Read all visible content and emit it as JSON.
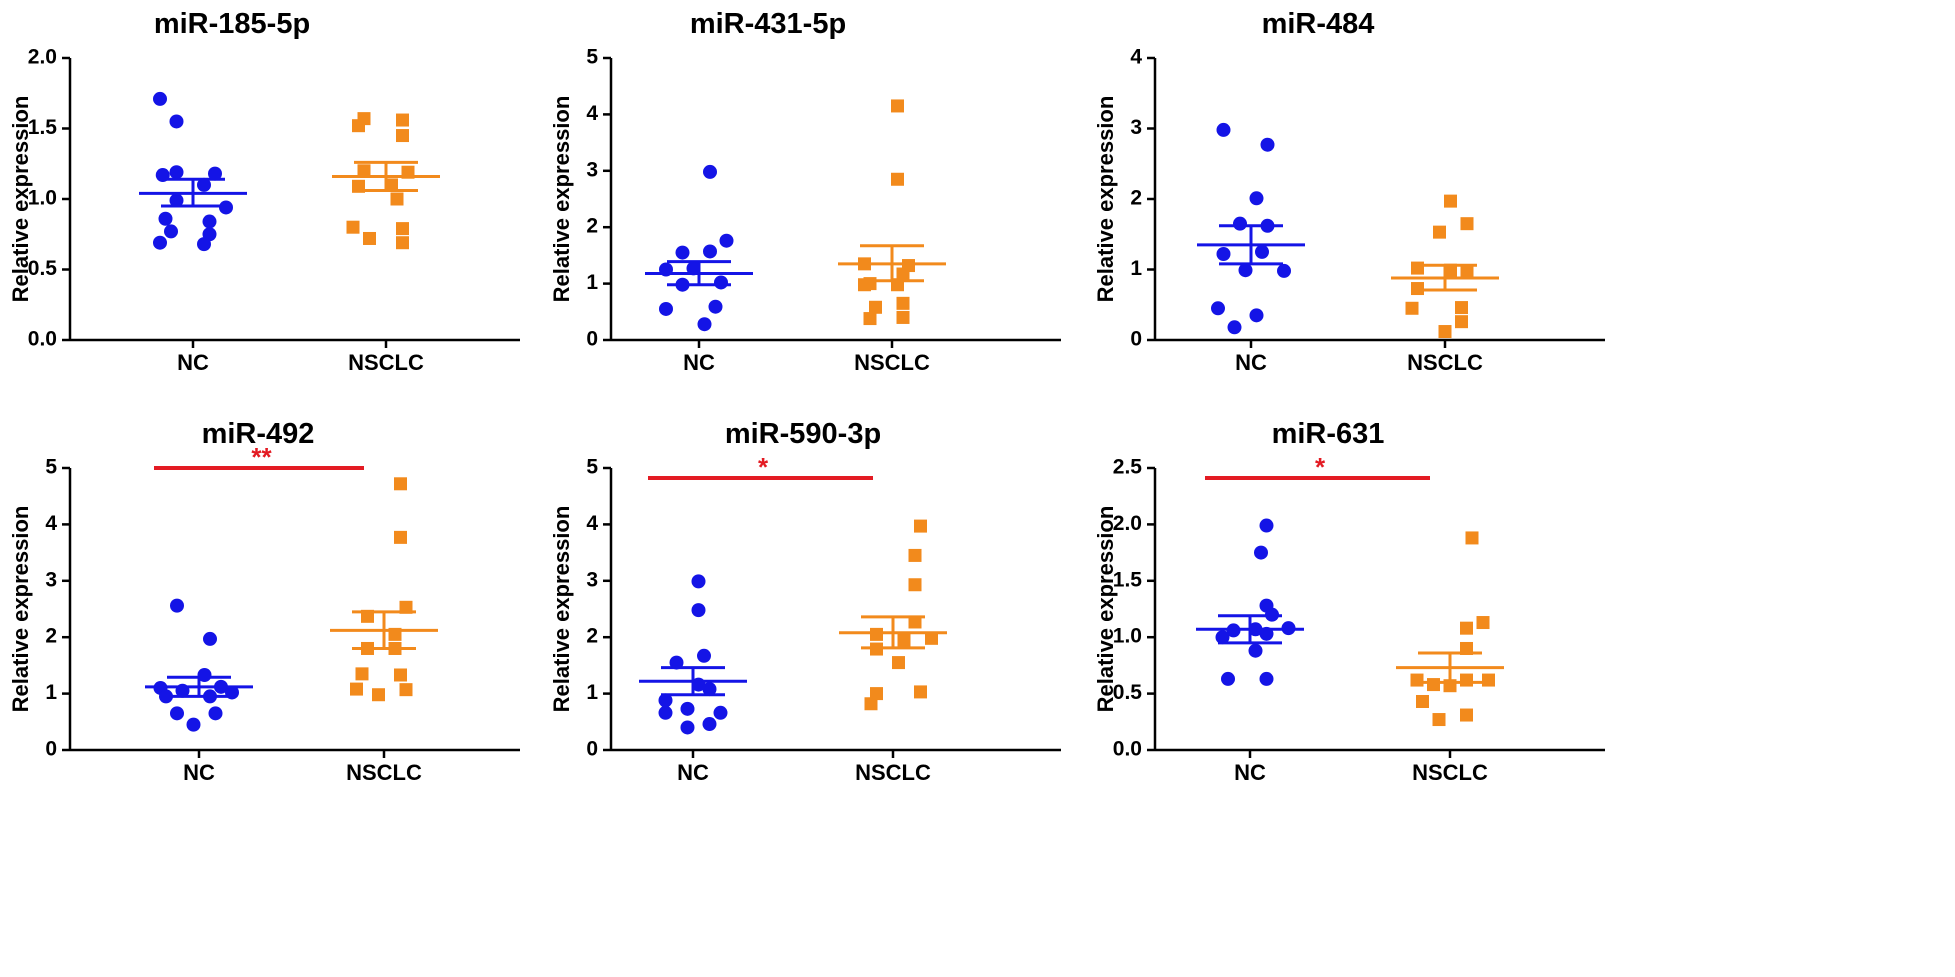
{
  "colors": {
    "nc": "#1414e6",
    "nsclc": "#f28a1c",
    "significance": "#e31b23",
    "axis": "#000000"
  },
  "chart_data": [
    {
      "type": "scatter",
      "title": "miR-185-5p",
      "ylabel": "Relative expression",
      "categories": [
        "NC",
        "NSCLC"
      ],
      "ylim": [
        0,
        2.0
      ],
      "yticks": [
        "0.0",
        "0.5",
        "1.0",
        "1.5",
        "2.0"
      ],
      "series": [
        {
          "name": "NC",
          "marker": "circle",
          "mean": 1.04,
          "sem_upper": 1.14,
          "sem_lower": 0.95,
          "points": [
            [
              -0.6,
              1.71
            ],
            [
              -0.3,
              1.55
            ],
            [
              -0.3,
              1.19
            ],
            [
              -0.55,
              1.17
            ],
            [
              0.4,
              1.18
            ],
            [
              0.2,
              1.1
            ],
            [
              -0.3,
              0.99
            ],
            [
              0.6,
              0.94
            ],
            [
              -0.5,
              0.86
            ],
            [
              0.3,
              0.84
            ],
            [
              -0.4,
              0.77
            ],
            [
              0.3,
              0.75
            ],
            [
              -0.6,
              0.69
            ],
            [
              0.2,
              0.68
            ]
          ]
        },
        {
          "name": "NSCLC",
          "marker": "square",
          "mean": 1.16,
          "sem_upper": 1.26,
          "sem_lower": 1.06,
          "points": [
            [
              -0.4,
              1.57
            ],
            [
              0.3,
              1.56
            ],
            [
              -0.5,
              1.52
            ],
            [
              0.3,
              1.45
            ],
            [
              -0.4,
              1.2
            ],
            [
              0.4,
              1.19
            ],
            [
              0.1,
              1.1
            ],
            [
              -0.5,
              1.09
            ],
            [
              0.2,
              1.0
            ],
            [
              -0.6,
              0.8
            ],
            [
              0.3,
              0.79
            ],
            [
              -0.3,
              0.72
            ],
            [
              0.3,
              0.69
            ]
          ]
        }
      ],
      "significance": null
    },
    {
      "type": "scatter",
      "title": "miR-431-5p",
      "ylabel": "Relative expression",
      "categories": [
        "NC",
        "NSCLC"
      ],
      "ylim": [
        0,
        5
      ],
      "yticks": [
        "0",
        "1",
        "2",
        "3",
        "4",
        "5"
      ],
      "series": [
        {
          "name": "NC",
          "marker": "circle",
          "mean": 1.18,
          "sem_upper": 1.39,
          "sem_lower": 0.98,
          "points": [
            [
              0.2,
              2.98
            ],
            [
              0.5,
              1.76
            ],
            [
              -0.3,
              1.55
            ],
            [
              0.2,
              1.57
            ],
            [
              -0.1,
              1.27
            ],
            [
              -0.6,
              1.25
            ],
            [
              0.4,
              1.02
            ],
            [
              -0.3,
              0.98
            ],
            [
              0.3,
              0.59
            ],
            [
              -0.6,
              0.55
            ],
            [
              0.1,
              0.28
            ]
          ]
        },
        {
          "name": "NSCLC",
          "marker": "square",
          "mean": 1.35,
          "sem_upper": 1.67,
          "sem_lower": 1.05,
          "points": [
            [
              0.1,
              4.15
            ],
            [
              0.1,
              2.85
            ],
            [
              -0.5,
              1.35
            ],
            [
              0.3,
              1.32
            ],
            [
              0.2,
              1.17
            ],
            [
              -0.4,
              1.0
            ],
            [
              0.1,
              0.98
            ],
            [
              -0.5,
              0.98
            ],
            [
              0.2,
              0.65
            ],
            [
              -0.3,
              0.58
            ],
            [
              -0.4,
              0.38
            ],
            [
              0.2,
              0.4
            ]
          ]
        }
      ],
      "significance": null
    },
    {
      "type": "scatter",
      "title": "miR-484",
      "ylabel": "Relative expression",
      "categories": [
        "NC",
        "NSCLC"
      ],
      "ylim": [
        0,
        4
      ],
      "yticks": [
        "0",
        "1",
        "2",
        "3",
        "4"
      ],
      "series": [
        {
          "name": "NC",
          "marker": "circle",
          "mean": 1.35,
          "sem_upper": 1.62,
          "sem_lower": 1.08,
          "points": [
            [
              -0.5,
              2.98
            ],
            [
              0.3,
              2.77
            ],
            [
              0.1,
              2.01
            ],
            [
              -0.2,
              1.65
            ],
            [
              0.3,
              1.62
            ],
            [
              -0.5,
              1.22
            ],
            [
              0.2,
              1.25
            ],
            [
              0.6,
              0.98
            ],
            [
              -0.1,
              0.99
            ],
            [
              -0.6,
              0.45
            ],
            [
              0.1,
              0.35
            ],
            [
              -0.3,
              0.18
            ]
          ]
        },
        {
          "name": "NSCLC",
          "marker": "square",
          "mean": 0.88,
          "sem_upper": 1.06,
          "sem_lower": 0.71,
          "points": [
            [
              0.1,
              1.97
            ],
            [
              0.4,
              1.65
            ],
            [
              -0.1,
              1.53
            ],
            [
              -0.5,
              1.02
            ],
            [
              0.4,
              0.98
            ],
            [
              0.1,
              0.99
            ],
            [
              -0.5,
              0.73
            ],
            [
              0.3,
              0.46
            ],
            [
              -0.6,
              0.45
            ],
            [
              0.3,
              0.26
            ],
            [
              0.0,
              0.12
            ]
          ]
        }
      ],
      "significance": null
    },
    {
      "type": "scatter",
      "title": "miR-492",
      "ylabel": "Relative expression",
      "categories": [
        "NC",
        "NSCLC"
      ],
      "ylim": [
        0,
        5
      ],
      "yticks": [
        "0",
        "1",
        "2",
        "3",
        "4",
        "5"
      ],
      "series": [
        {
          "name": "NC",
          "marker": "circle",
          "mean": 1.12,
          "sem_upper": 1.29,
          "sem_lower": 0.95,
          "points": [
            [
              -0.4,
              2.56
            ],
            [
              0.2,
              1.97
            ],
            [
              0.1,
              1.33
            ],
            [
              0.4,
              1.12
            ],
            [
              -0.7,
              1.1
            ],
            [
              -0.3,
              1.05
            ],
            [
              0.6,
              1.02
            ],
            [
              -0.6,
              0.95
            ],
            [
              0.2,
              0.95
            ],
            [
              -0.4,
              0.65
            ],
            [
              0.3,
              0.65
            ],
            [
              -0.1,
              0.45
            ]
          ]
        },
        {
          "name": "NSCLC",
          "marker": "square",
          "mean": 2.12,
          "sem_upper": 2.45,
          "sem_lower": 1.8,
          "points": [
            [
              0.3,
              4.72
            ],
            [
              0.3,
              3.77
            ],
            [
              0.4,
              2.53
            ],
            [
              -0.3,
              2.37
            ],
            [
              0.2,
              2.05
            ],
            [
              -0.3,
              1.8
            ],
            [
              0.2,
              1.8
            ],
            [
              -0.4,
              1.35
            ],
            [
              0.3,
              1.33
            ],
            [
              0.4,
              1.07
            ],
            [
              -0.5,
              1.08
            ],
            [
              -0.1,
              0.98
            ]
          ]
        }
      ],
      "significance": {
        "label": "**"
      }
    },
    {
      "type": "scatter",
      "title": "miR-590-3p",
      "ylabel": "Relative expression",
      "categories": [
        "NC",
        "NSCLC"
      ],
      "ylim": [
        0,
        5
      ],
      "yticks": [
        "0",
        "1",
        "2",
        "3",
        "4",
        "5"
      ],
      "series": [
        {
          "name": "NC",
          "marker": "circle",
          "mean": 1.22,
          "sem_upper": 1.46,
          "sem_lower": 0.98,
          "points": [
            [
              0.1,
              2.99
            ],
            [
              0.1,
              2.48
            ],
            [
              0.2,
              1.67
            ],
            [
              -0.3,
              1.55
            ],
            [
              0.1,
              1.16
            ],
            [
              0.3,
              1.08
            ],
            [
              -0.5,
              0.88
            ],
            [
              -0.1,
              0.73
            ],
            [
              0.5,
              0.66
            ],
            [
              -0.5,
              0.66
            ],
            [
              0.3,
              0.46
            ],
            [
              -0.1,
              0.4
            ]
          ]
        },
        {
          "name": "NSCLC",
          "marker": "square",
          "mean": 2.08,
          "sem_upper": 2.36,
          "sem_lower": 1.81,
          "points": [
            [
              0.5,
              3.97
            ],
            [
              0.4,
              3.45
            ],
            [
              0.4,
              2.93
            ],
            [
              0.4,
              2.27
            ],
            [
              -0.3,
              2.05
            ],
            [
              0.7,
              1.98
            ],
            [
              0.2,
              1.95
            ],
            [
              -0.3,
              1.79
            ],
            [
              0.1,
              1.55
            ],
            [
              0.5,
              1.03
            ],
            [
              -0.3,
              1.0
            ],
            [
              -0.4,
              0.82
            ]
          ]
        }
      ],
      "significance": {
        "label": "*"
      }
    },
    {
      "type": "scatter",
      "title": "miR-631",
      "ylabel": "Relative expression",
      "categories": [
        "NC",
        "NSCLC"
      ],
      "ylim": [
        0,
        2.5
      ],
      "yticks": [
        "0.0",
        "0.5",
        "1.0",
        "1.5",
        "2.0",
        "2.5"
      ],
      "series": [
        {
          "name": "NC",
          "marker": "circle",
          "mean": 1.07,
          "sem_upper": 1.19,
          "sem_lower": 0.95,
          "points": [
            [
              0.3,
              1.99
            ],
            [
              0.2,
              1.75
            ],
            [
              0.3,
              1.28
            ],
            [
              0.4,
              1.2
            ],
            [
              0.1,
              1.07
            ],
            [
              -0.3,
              1.06
            ],
            [
              0.7,
              1.08
            ],
            [
              0.3,
              1.03
            ],
            [
              -0.5,
              1.0
            ],
            [
              0.1,
              0.88
            ],
            [
              -0.4,
              0.63
            ],
            [
              0.3,
              0.63
            ]
          ]
        },
        {
          "name": "NSCLC",
          "marker": "square",
          "mean": 0.73,
          "sem_upper": 0.86,
          "sem_lower": 0.6,
          "points": [
            [
              0.4,
              1.88
            ],
            [
              0.6,
              1.13
            ],
            [
              0.3,
              1.08
            ],
            [
              0.3,
              0.9
            ],
            [
              -0.6,
              0.62
            ],
            [
              0.3,
              0.62
            ],
            [
              -0.3,
              0.58
            ],
            [
              0.7,
              0.62
            ],
            [
              0.0,
              0.57
            ],
            [
              -0.5,
              0.43
            ],
            [
              0.3,
              0.31
            ],
            [
              -0.2,
              0.27
            ]
          ]
        }
      ],
      "significance": {
        "label": "*"
      }
    }
  ]
}
